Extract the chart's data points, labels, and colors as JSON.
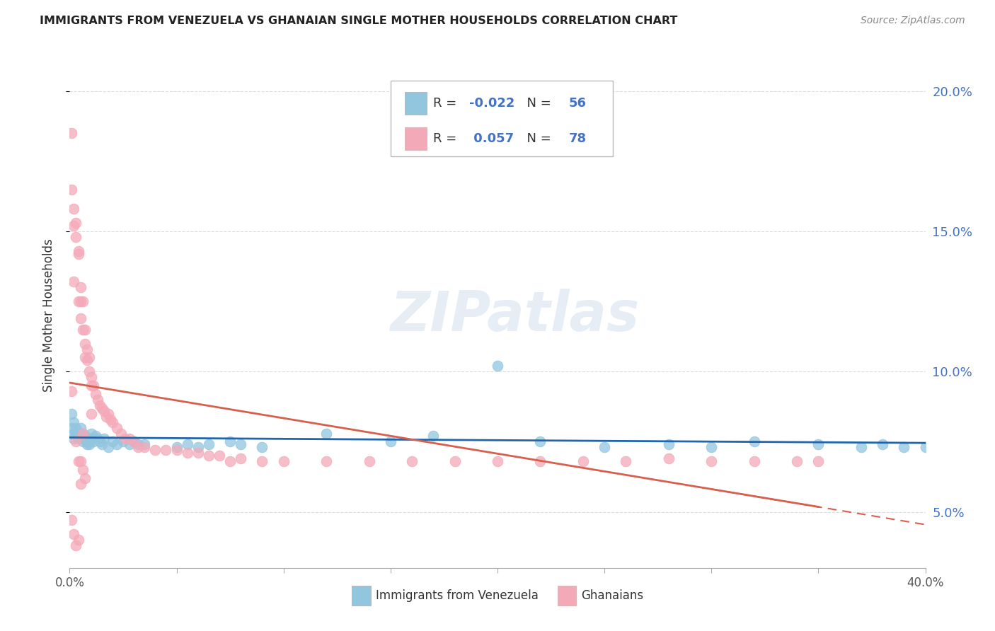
{
  "title": "IMMIGRANTS FROM VENEZUELA VS GHANAIAN SINGLE MOTHER HOUSEHOLDS CORRELATION CHART",
  "source": "Source: ZipAtlas.com",
  "ylabel": "Single Mother Households",
  "series1_label": "Immigrants from Venezuela",
  "series1_color": "#92c5de",
  "series1_line_color": "#2166ac",
  "series1_R": "-0.022",
  "series1_N": "56",
  "series2_label": "Ghanaians",
  "series2_color": "#f4a9b8",
  "series2_line_color": "#d6604d",
  "series2_R": "0.057",
  "series2_N": "78",
  "watermark": "ZIPatlas",
  "background_color": "#ffffff",
  "xlim": [
    0.0,
    0.4
  ],
  "ylim": [
    0.03,
    0.21
  ],
  "xticks": [
    0.0,
    0.05,
    0.1,
    0.15,
    0.2,
    0.25,
    0.3,
    0.35,
    0.4
  ],
  "yticks_right": [
    0.05,
    0.1,
    0.15,
    0.2
  ],
  "ytick_labels_right": [
    "5.0%",
    "10.0%",
    "15.0%",
    "20.0%"
  ],
  "Venezuela_x": [
    0.001,
    0.001,
    0.002,
    0.002,
    0.002,
    0.003,
    0.003,
    0.004,
    0.004,
    0.005,
    0.005,
    0.006,
    0.006,
    0.007,
    0.007,
    0.008,
    0.008,
    0.009,
    0.009,
    0.01,
    0.01,
    0.011,
    0.012,
    0.013,
    0.014,
    0.015,
    0.016,
    0.018,
    0.02,
    0.022,
    0.025,
    0.028,
    0.03,
    0.032,
    0.035,
    0.05,
    0.055,
    0.06,
    0.065,
    0.075,
    0.08,
    0.09,
    0.12,
    0.15,
    0.17,
    0.2,
    0.22,
    0.25,
    0.28,
    0.3,
    0.32,
    0.35,
    0.37,
    0.39,
    0.4,
    0.38
  ],
  "Venezuela_y": [
    0.085,
    0.08,
    0.078,
    0.076,
    0.082,
    0.08,
    0.078,
    0.078,
    0.076,
    0.078,
    0.08,
    0.075,
    0.078,
    0.077,
    0.076,
    0.075,
    0.074,
    0.075,
    0.074,
    0.076,
    0.078,
    0.075,
    0.077,
    0.076,
    0.075,
    0.074,
    0.076,
    0.073,
    0.075,
    0.074,
    0.075,
    0.074,
    0.075,
    0.074,
    0.074,
    0.073,
    0.074,
    0.073,
    0.074,
    0.075,
    0.074,
    0.073,
    0.078,
    0.075,
    0.077,
    0.102,
    0.075,
    0.073,
    0.074,
    0.073,
    0.075,
    0.074,
    0.073,
    0.073,
    0.073,
    0.074
  ],
  "Ghana_x": [
    0.001,
    0.001,
    0.001,
    0.002,
    0.002,
    0.002,
    0.003,
    0.003,
    0.004,
    0.004,
    0.004,
    0.005,
    0.005,
    0.005,
    0.006,
    0.006,
    0.007,
    0.007,
    0.007,
    0.008,
    0.008,
    0.009,
    0.009,
    0.01,
    0.01,
    0.011,
    0.012,
    0.013,
    0.014,
    0.015,
    0.016,
    0.017,
    0.018,
    0.019,
    0.02,
    0.022,
    0.024,
    0.026,
    0.028,
    0.03,
    0.032,
    0.035,
    0.04,
    0.045,
    0.05,
    0.055,
    0.06,
    0.065,
    0.07,
    0.075,
    0.08,
    0.09,
    0.1,
    0.12,
    0.14,
    0.16,
    0.18,
    0.2,
    0.22,
    0.24,
    0.26,
    0.28,
    0.3,
    0.32,
    0.34,
    0.35,
    0.001,
    0.002,
    0.003,
    0.004,
    0.005,
    0.006,
    0.003,
    0.004,
    0.005,
    0.006,
    0.007,
    0.01
  ],
  "Ghana_y": [
    0.185,
    0.165,
    0.093,
    0.152,
    0.158,
    0.132,
    0.153,
    0.148,
    0.143,
    0.142,
    0.125,
    0.13,
    0.125,
    0.119,
    0.125,
    0.115,
    0.115,
    0.11,
    0.105,
    0.108,
    0.104,
    0.105,
    0.1,
    0.098,
    0.095,
    0.095,
    0.092,
    0.09,
    0.088,
    0.087,
    0.086,
    0.084,
    0.085,
    0.083,
    0.082,
    0.08,
    0.078,
    0.076,
    0.076,
    0.075,
    0.073,
    0.073,
    0.072,
    0.072,
    0.072,
    0.071,
    0.071,
    0.07,
    0.07,
    0.068,
    0.069,
    0.068,
    0.068,
    0.068,
    0.068,
    0.068,
    0.068,
    0.068,
    0.068,
    0.068,
    0.068,
    0.069,
    0.068,
    0.068,
    0.068,
    0.068,
    0.047,
    0.042,
    0.038,
    0.04,
    0.06,
    0.078,
    0.075,
    0.068,
    0.068,
    0.065,
    0.062,
    0.085
  ]
}
